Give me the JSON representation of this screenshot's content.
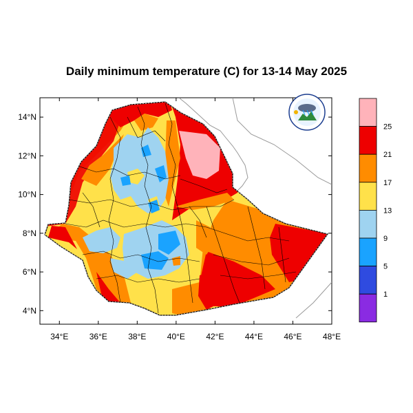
{
  "title": "Daily minimum temperature (C) for 13-14 May 2025",
  "map": {
    "lon_range": [
      33,
      48
    ],
    "lat_range": [
      3.3,
      15
    ],
    "x_ticks": [
      "34°E",
      "36°E",
      "38°E",
      "40°E",
      "42°E",
      "44°E",
      "46°E",
      "48°E"
    ],
    "y_ticks": [
      "14°N",
      "12°N",
      "10°N",
      "8°N",
      "6°N",
      "4°N"
    ]
  },
  "legend": {
    "labels": [
      "25",
      "21",
      "17",
      "13",
      "9",
      "5",
      "1"
    ],
    "colors": [
      "#ffb3ba",
      "#ee0000",
      "#ff8c00",
      "#ffe14a",
      "#9fd3f0",
      "#1aa3ff",
      "#2f4be0",
      "#8a2be2"
    ]
  },
  "logo": {
    "icon": "agency-logo-icon"
  }
}
